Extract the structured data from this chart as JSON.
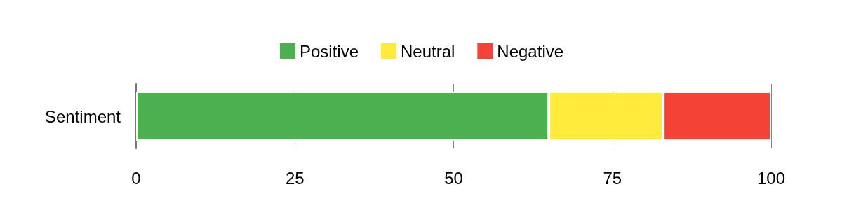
{
  "chart_data": {
    "type": "bar",
    "orientation": "horizontal",
    "stacked": true,
    "categories": [
      "Sentiment"
    ],
    "series": [
      {
        "name": "Positive",
        "color": "#4caf50",
        "values": [
          65
        ]
      },
      {
        "name": "Neutral",
        "color": "#ffeb3b",
        "values": [
          18
        ]
      },
      {
        "name": "Negative",
        "color": "#f44336",
        "values": [
          17
        ]
      }
    ],
    "xlim": [
      0,
      100
    ],
    "xticks": [
      0,
      25,
      50,
      75,
      100
    ],
    "grid": "x",
    "legend": "top"
  }
}
